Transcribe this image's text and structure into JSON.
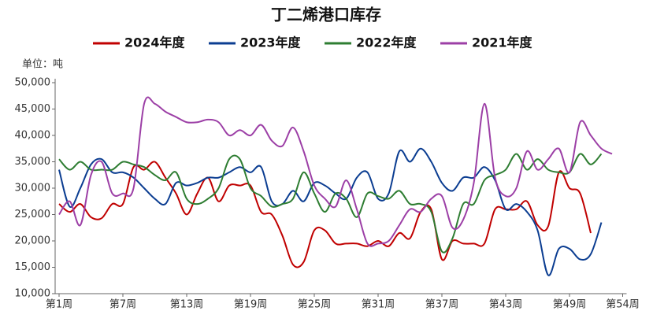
{
  "chart_data": {
    "type": "line",
    "title": "丁二烯港口库存",
    "unit_label": "单位：吨",
    "categories": [
      "第1周",
      null,
      null,
      null,
      null,
      null,
      "第7周",
      null,
      null,
      null,
      null,
      null,
      "第13周",
      null,
      null,
      null,
      null,
      null,
      "第19周",
      null,
      null,
      null,
      null,
      null,
      "第25周",
      null,
      null,
      null,
      null,
      null,
      "第31周",
      null,
      null,
      null,
      null,
      null,
      "第37周",
      null,
      null,
      null,
      null,
      null,
      "第43周",
      null,
      null,
      null,
      null,
      null,
      "第49周",
      null,
      null,
      null,
      null,
      "第54周"
    ],
    "series": [
      {
        "name": "2024年度",
        "color": "#c00000",
        "values": [
          27000,
          25500,
          27000,
          24500,
          24300,
          27000,
          27000,
          34000,
          33500,
          35000,
          32000,
          29000,
          25000,
          29000,
          32000,
          27500,
          30500,
          30500,
          30500,
          25500,
          25000,
          21000,
          15500,
          16000,
          22000,
          22000,
          19500,
          19500,
          19500,
          19000,
          20000,
          19000,
          21500,
          20500,
          25500,
          26000,
          16500,
          20000,
          19500,
          19500,
          19500,
          26000,
          26000,
          26000,
          27500,
          23000,
          22800,
          33000,
          30000,
          29000,
          21500,
          null,
          null,
          null
        ]
      },
      {
        "name": "2023年度",
        "color": "#0b3d91",
        "values": [
          33500,
          26500,
          30000,
          34500,
          35500,
          33000,
          33000,
          32000,
          30000,
          28000,
          27000,
          31000,
          30500,
          31000,
          32000,
          32000,
          33000,
          34000,
          33000,
          34000,
          27500,
          27000,
          29500,
          27500,
          31000,
          30500,
          29000,
          28000,
          32000,
          33000,
          28000,
          29000,
          37000,
          35000,
          37500,
          35000,
          31000,
          29500,
          32000,
          32000,
          34000,
          31500,
          26000,
          27000,
          25500,
          22000,
          13500,
          18500,
          18500,
          16500,
          17500,
          23500,
          null,
          null
        ]
      },
      {
        "name": "2022年度",
        "color": "#2e7d32",
        "values": [
          35500,
          33500,
          35000,
          33500,
          33500,
          33500,
          35000,
          34500,
          34000,
          32500,
          31500,
          33000,
          28000,
          27000,
          28000,
          30000,
          35500,
          35500,
          30000,
          28500,
          26500,
          27000,
          28000,
          33000,
          29000,
          25500,
          29000,
          28000,
          24500,
          29000,
          28500,
          28000,
          29500,
          27000,
          27000,
          25500,
          18000,
          20500,
          27000,
          27000,
          31500,
          32500,
          33500,
          36500,
          33500,
          35500,
          33500,
          33000,
          33000,
          36500,
          34500,
          36500,
          null,
          null
        ]
      },
      {
        "name": "2021年度",
        "color": "#9c3fa6",
        "values": [
          25000,
          27500,
          23000,
          32500,
          35000,
          29000,
          29000,
          30000,
          46000,
          46000,
          44500,
          43500,
          42500,
          42500,
          43000,
          42500,
          40000,
          41000,
          40000,
          42000,
          39000,
          38000,
          41500,
          37000,
          30500,
          28000,
          26500,
          31500,
          26000,
          19500,
          19500,
          20000,
          23000,
          26000,
          25500,
          28000,
          28500,
          22500,
          24000,
          31000,
          46000,
          32000,
          28500,
          30000,
          37000,
          33500,
          35500,
          37500,
          33000,
          42500,
          40000,
          37500,
          36500,
          null
        ]
      }
    ],
    "ylim": [
      10000,
      50000
    ],
    "yticks": [
      {
        "value": 10000,
        "label": "10,000"
      },
      {
        "value": 15000,
        "label": "15,000"
      },
      {
        "value": 20000,
        "label": "20,000"
      },
      {
        "value": 25000,
        "label": "25,000"
      },
      {
        "value": 30000,
        "label": "30,000"
      },
      {
        "value": 35000,
        "label": "35,000"
      },
      {
        "value": 40000,
        "label": "40,000"
      },
      {
        "value": 45000,
        "label": "45,000"
      },
      {
        "value": 50000,
        "label": "50,000"
      }
    ],
    "legend": "top"
  }
}
